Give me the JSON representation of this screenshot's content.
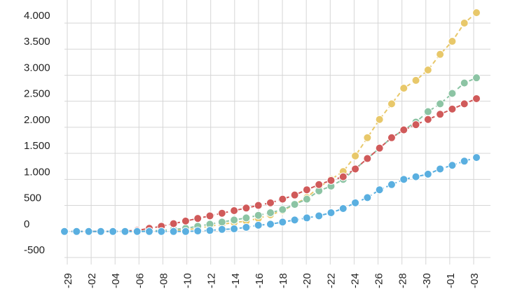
{
  "chart_data": {
    "type": "line",
    "title": "",
    "xlabel": "",
    "ylabel": "",
    "ylim": [
      -500,
      4000
    ],
    "yticks": [
      4000,
      3500,
      3000,
      2500,
      2000,
      1500,
      1000,
      500,
      0,
      -500
    ],
    "ytick_labels": [
      "4.000",
      "3.500",
      "3.000",
      "2.500",
      "2.000",
      "1.500",
      "1.000",
      "500",
      "0",
      "-500"
    ],
    "x_labels": [
      "-29",
      "-02",
      "-04",
      "-06",
      "-08",
      "-10",
      "-12",
      "-14",
      "-16",
      "-18",
      "-20",
      "-22",
      "-24",
      "-26",
      "-28",
      "-30",
      "-01",
      "-03"
    ],
    "grid": true,
    "legend": "none",
    "series": [
      {
        "color": "#e8c86a",
        "values": [
          0,
          0,
          0,
          0,
          0,
          0,
          0,
          5,
          10,
          20,
          30,
          60,
          100,
          140,
          170,
          200,
          250,
          320,
          400,
          520,
          650,
          850,
          1000,
          1150,
          1450,
          1800,
          2150,
          2450,
          2750,
          2900,
          3100,
          3400,
          3650,
          4000,
          4200
        ]
      },
      {
        "color": "#8cc4a4",
        "values": [
          0,
          0,
          0,
          0,
          0,
          0,
          0,
          10,
          20,
          40,
          60,
          100,
          140,
          180,
          220,
          260,
          310,
          360,
          420,
          520,
          620,
          780,
          870,
          1000,
          1200,
          1400,
          1600,
          1800,
          1950,
          2100,
          2300,
          2450,
          2650,
          2850,
          2950
        ]
      },
      {
        "color": "#d05a5a",
        "values": [
          0,
          0,
          0,
          0,
          0,
          10,
          20,
          60,
          100,
          150,
          200,
          250,
          300,
          350,
          400,
          450,
          500,
          550,
          620,
          700,
          800,
          900,
          980,
          1050,
          1200,
          1400,
          1600,
          1800,
          1950,
          2050,
          2150,
          2250,
          2350,
          2450,
          2550
        ]
      },
      {
        "color": "#5aafe0",
        "values": [
          0,
          0,
          0,
          0,
          0,
          0,
          0,
          0,
          0,
          0,
          0,
          10,
          20,
          40,
          50,
          80,
          120,
          140,
          180,
          220,
          260,
          300,
          360,
          440,
          550,
          650,
          800,
          900,
          1000,
          1050,
          1100,
          1200,
          1270,
          1350,
          1420
        ]
      }
    ]
  }
}
